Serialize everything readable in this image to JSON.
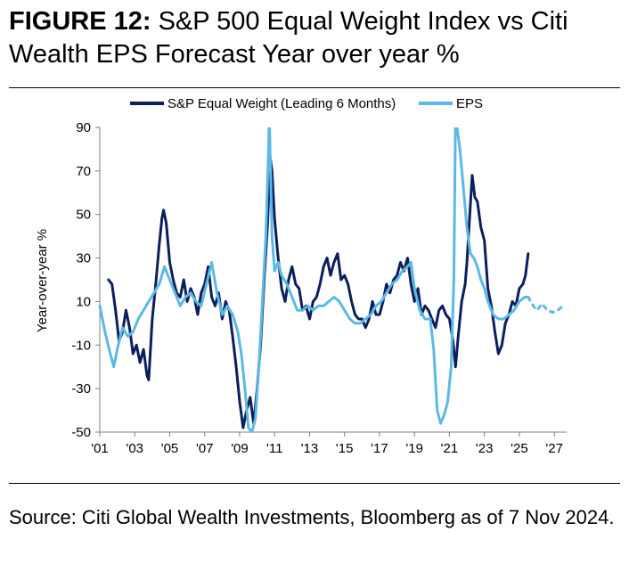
{
  "figure": {
    "label": "FIGURE 12:",
    "title": "S&P 500 Equal Weight Index vs Citi Wealth EPS Forecast Year over year %"
  },
  "source": "Source: Citi Global Wealth Investments, Bloomberg as of 7 Nov 2024.",
  "colors": {
    "equal_weight": "#0a1f5c",
    "eps": "#5cb8e6",
    "axis": "#7f7f7f",
    "text": "#000000"
  },
  "chart_data": {
    "type": "line",
    "title": "",
    "xlabel": "",
    "ylabel": "Year-over-year %",
    "xlim": [
      2001,
      2027.5
    ],
    "ylim": [
      -50,
      90
    ],
    "yticks": [
      90,
      70,
      50,
      30,
      10,
      -10,
      -30,
      -50
    ],
    "xticks": [
      {
        "value": 2001,
        "label": "'01"
      },
      {
        "value": 2003,
        "label": "'03"
      },
      {
        "value": 2005,
        "label": "'05"
      },
      {
        "value": 2007,
        "label": "'07"
      },
      {
        "value": 2009,
        "label": "'09"
      },
      {
        "value": 2011,
        "label": "'11"
      },
      {
        "value": 2013,
        "label": "'13"
      },
      {
        "value": 2015,
        "label": "'15"
      },
      {
        "value": 2017,
        "label": "'17"
      },
      {
        "value": 2019,
        "label": "'19"
      },
      {
        "value": 2021,
        "label": "'21"
      },
      {
        "value": 2023,
        "label": "'23"
      },
      {
        "value": 2025,
        "label": "'25"
      },
      {
        "value": 2027,
        "label": "'27"
      }
    ],
    "grid": false,
    "legend_position": "top",
    "series": [
      {
        "name": "S&P Equal Weight (Leading 6 Months)",
        "color": "#0a1f5c",
        "style": "solid",
        "points": [
          [
            2001.5,
            20
          ],
          [
            2001.7,
            18
          ],
          [
            2001.9,
            6
          ],
          [
            2002.1,
            -8
          ],
          [
            2002.3,
            -4
          ],
          [
            2002.5,
            6
          ],
          [
            2002.7,
            -2
          ],
          [
            2002.9,
            -14
          ],
          [
            2003.1,
            -10
          ],
          [
            2003.3,
            -18
          ],
          [
            2003.5,
            -12
          ],
          [
            2003.7,
            -24
          ],
          [
            2003.8,
            -26
          ],
          [
            2004.0,
            2
          ],
          [
            2004.2,
            18
          ],
          [
            2004.4,
            36
          ],
          [
            2004.55,
            48
          ],
          [
            2004.65,
            52
          ],
          [
            2004.8,
            46
          ],
          [
            2005.0,
            28
          ],
          [
            2005.2,
            20
          ],
          [
            2005.4,
            14
          ],
          [
            2005.6,
            12
          ],
          [
            2005.8,
            20
          ],
          [
            2006.0,
            10
          ],
          [
            2006.2,
            16
          ],
          [
            2006.4,
            12
          ],
          [
            2006.6,
            4
          ],
          [
            2006.8,
            14
          ],
          [
            2007.0,
            18
          ],
          [
            2007.2,
            26
          ],
          [
            2007.4,
            12
          ],
          [
            2007.6,
            8
          ],
          [
            2007.8,
            14
          ],
          [
            2008.0,
            2
          ],
          [
            2008.2,
            10
          ],
          [
            2008.4,
            6
          ],
          [
            2008.6,
            -6
          ],
          [
            2008.8,
            -20
          ],
          [
            2009.0,
            -36
          ],
          [
            2009.2,
            -48
          ],
          [
            2009.4,
            -40
          ],
          [
            2009.6,
            -34
          ],
          [
            2009.8,
            -46
          ],
          [
            2010.0,
            -30
          ],
          [
            2010.2,
            -10
          ],
          [
            2010.4,
            20
          ],
          [
            2010.6,
            46
          ],
          [
            2010.75,
            76
          ],
          [
            2010.85,
            70
          ],
          [
            2011.0,
            48
          ],
          [
            2011.2,
            30
          ],
          [
            2011.4,
            16
          ],
          [
            2011.6,
            10
          ],
          [
            2011.8,
            20
          ],
          [
            2012.0,
            26
          ],
          [
            2012.2,
            18
          ],
          [
            2012.4,
            16
          ],
          [
            2012.6,
            6
          ],
          [
            2012.8,
            8
          ],
          [
            2013.0,
            2
          ],
          [
            2013.2,
            10
          ],
          [
            2013.4,
            12
          ],
          [
            2013.6,
            18
          ],
          [
            2013.8,
            26
          ],
          [
            2014.0,
            30
          ],
          [
            2014.2,
            22
          ],
          [
            2014.4,
            28
          ],
          [
            2014.6,
            32
          ],
          [
            2014.8,
            20
          ],
          [
            2015.0,
            22
          ],
          [
            2015.2,
            18
          ],
          [
            2015.4,
            10
          ],
          [
            2015.6,
            4
          ],
          [
            2015.8,
            2
          ],
          [
            2016.0,
            2
          ],
          [
            2016.2,
            -2
          ],
          [
            2016.4,
            2
          ],
          [
            2016.6,
            10
          ],
          [
            2016.8,
            4
          ],
          [
            2017.0,
            4
          ],
          [
            2017.2,
            10
          ],
          [
            2017.4,
            18
          ],
          [
            2017.6,
            14
          ],
          [
            2017.8,
            20
          ],
          [
            2018.0,
            22
          ],
          [
            2018.2,
            28
          ],
          [
            2018.4,
            24
          ],
          [
            2018.6,
            30
          ],
          [
            2018.8,
            18
          ],
          [
            2019.0,
            10
          ],
          [
            2019.2,
            16
          ],
          [
            2019.4,
            4
          ],
          [
            2019.6,
            8
          ],
          [
            2019.8,
            6
          ],
          [
            2020.0,
            2
          ],
          [
            2020.2,
            -2
          ],
          [
            2020.4,
            6
          ],
          [
            2020.6,
            8
          ],
          [
            2020.8,
            4
          ],
          [
            2021.0,
            2
          ],
          [
            2021.2,
            -8
          ],
          [
            2021.35,
            -20
          ],
          [
            2021.5,
            -6
          ],
          [
            2021.7,
            10
          ],
          [
            2021.9,
            18
          ],
          [
            2022.0,
            28
          ],
          [
            2022.15,
            48
          ],
          [
            2022.3,
            68
          ],
          [
            2022.45,
            58
          ],
          [
            2022.6,
            56
          ],
          [
            2022.8,
            44
          ],
          [
            2023.0,
            38
          ],
          [
            2023.2,
            16
          ],
          [
            2023.4,
            8
          ],
          [
            2023.6,
            -4
          ],
          [
            2023.8,
            -14
          ],
          [
            2024.0,
            -10
          ],
          [
            2024.2,
            0
          ],
          [
            2024.4,
            4
          ],
          [
            2024.6,
            10
          ],
          [
            2024.8,
            8
          ],
          [
            2025.0,
            16
          ],
          [
            2025.2,
            18
          ],
          [
            2025.35,
            22
          ],
          [
            2025.5,
            32
          ]
        ]
      },
      {
        "name": "EPS",
        "color": "#5cb8e6",
        "style": "solid",
        "points": [
          [
            2001.0,
            8
          ],
          [
            2001.3,
            -4
          ],
          [
            2001.6,
            -14
          ],
          [
            2001.8,
            -20
          ],
          [
            2002.0,
            -12
          ],
          [
            2002.3,
            -2
          ],
          [
            2002.6,
            -6
          ],
          [
            2002.9,
            -4
          ],
          [
            2003.2,
            2
          ],
          [
            2003.5,
            6
          ],
          [
            2003.8,
            10
          ],
          [
            2004.1,
            14
          ],
          [
            2004.4,
            18
          ],
          [
            2004.7,
            26
          ],
          [
            2005.0,
            20
          ],
          [
            2005.3,
            14
          ],
          [
            2005.6,
            8
          ],
          [
            2005.9,
            12
          ],
          [
            2006.2,
            14
          ],
          [
            2006.5,
            10
          ],
          [
            2006.8,
            8
          ],
          [
            2007.1,
            18
          ],
          [
            2007.4,
            28
          ],
          [
            2007.7,
            14
          ],
          [
            2008.0,
            4
          ],
          [
            2008.3,
            8
          ],
          [
            2008.6,
            4
          ],
          [
            2008.9,
            -4
          ],
          [
            2009.1,
            -14
          ],
          [
            2009.3,
            -30
          ],
          [
            2009.5,
            -48
          ],
          [
            2009.7,
            -50
          ],
          [
            2009.9,
            -44
          ],
          [
            2010.1,
            -20
          ],
          [
            2010.3,
            10
          ],
          [
            2010.5,
            40
          ],
          [
            2010.65,
            80
          ],
          [
            2010.7,
            95
          ],
          [
            2010.85,
            40
          ],
          [
            2011.0,
            24
          ],
          [
            2011.2,
            28
          ],
          [
            2011.4,
            22
          ],
          [
            2011.7,
            18
          ],
          [
            2012.0,
            12
          ],
          [
            2012.3,
            6
          ],
          [
            2012.6,
            6
          ],
          [
            2012.9,
            8
          ],
          [
            2013.2,
            6
          ],
          [
            2013.5,
            8
          ],
          [
            2013.8,
            8
          ],
          [
            2014.1,
            10
          ],
          [
            2014.4,
            12
          ],
          [
            2014.7,
            10
          ],
          [
            2015.0,
            6
          ],
          [
            2015.3,
            2
          ],
          [
            2015.6,
            0
          ],
          [
            2015.9,
            0
          ],
          [
            2016.2,
            2
          ],
          [
            2016.5,
            4
          ],
          [
            2016.8,
            8
          ],
          [
            2017.1,
            10
          ],
          [
            2017.4,
            14
          ],
          [
            2017.7,
            18
          ],
          [
            2018.0,
            20
          ],
          [
            2018.3,
            24
          ],
          [
            2018.6,
            26
          ],
          [
            2018.8,
            28
          ],
          [
            2019.0,
            16
          ],
          [
            2019.3,
            6
          ],
          [
            2019.6,
            2
          ],
          [
            2019.9,
            2
          ],
          [
            2020.1,
            -12
          ],
          [
            2020.3,
            -40
          ],
          [
            2020.5,
            -46
          ],
          [
            2020.7,
            -42
          ],
          [
            2020.9,
            -36
          ],
          [
            2021.1,
            -20
          ],
          [
            2021.25,
            20
          ],
          [
            2021.35,
            95
          ],
          [
            2021.6,
            80
          ],
          [
            2021.8,
            62
          ],
          [
            2022.0,
            44
          ],
          [
            2022.2,
            32
          ],
          [
            2022.4,
            30
          ],
          [
            2022.6,
            26
          ],
          [
            2022.8,
            20
          ],
          [
            2023.0,
            16
          ],
          [
            2023.2,
            10
          ],
          [
            2023.5,
            4
          ],
          [
            2023.8,
            2
          ],
          [
            2024.1,
            2
          ],
          [
            2024.4,
            4
          ],
          [
            2024.7,
            6
          ],
          [
            2025.0,
            10
          ],
          [
            2025.3,
            12
          ],
          [
            2025.5,
            12
          ]
        ]
      },
      {
        "name": "EPS",
        "color": "#5cb8e6",
        "style": "dashed",
        "points": [
          [
            2025.5,
            12
          ],
          [
            2025.8,
            8
          ],
          [
            2026.0,
            6
          ],
          [
            2026.3,
            9
          ],
          [
            2026.6,
            6
          ],
          [
            2026.9,
            5
          ],
          [
            2027.2,
            6
          ],
          [
            2027.5,
            8
          ]
        ]
      }
    ]
  }
}
